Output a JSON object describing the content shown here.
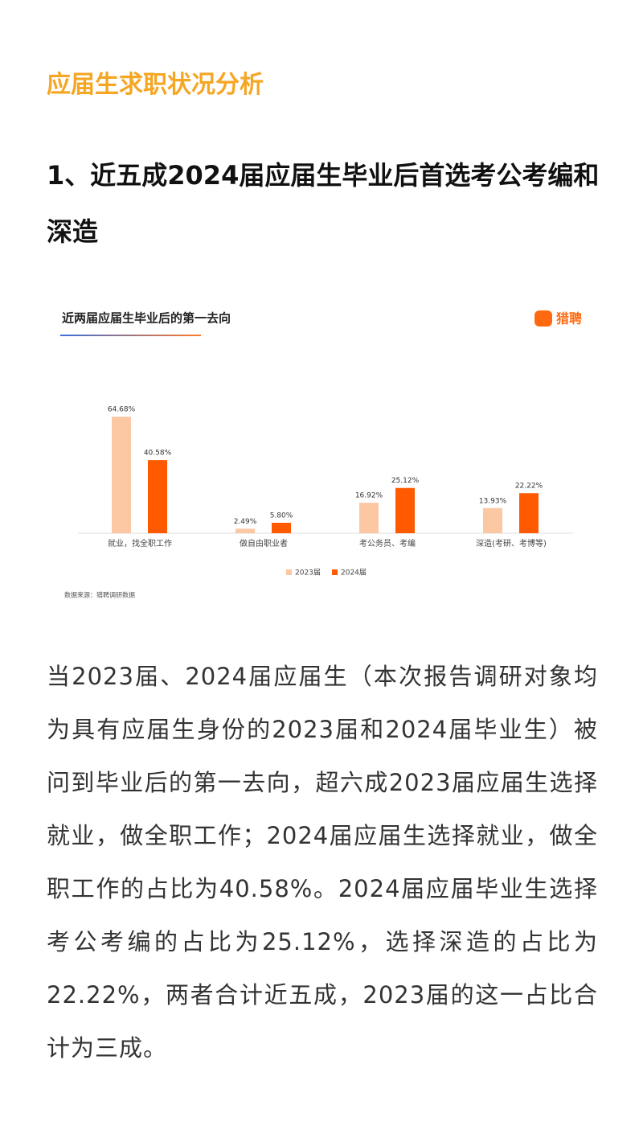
{
  "header": {
    "title": "应届生求职状况分析"
  },
  "section": {
    "heading": "1、近五成2024届应届生毕业后首选考公考编和深造"
  },
  "chart_data": {
    "type": "bar",
    "title": "近两届应届生毕业后的第一去向",
    "logo": "猎聘",
    "categories": [
      "就业，找全职工作",
      "做自由职业者",
      "考公务员、考编",
      "深造(考研、考博等)"
    ],
    "series": [
      {
        "name": "2023届",
        "color": "#fcc8a4",
        "values": [
          64.68,
          2.49,
          16.92,
          13.93
        ],
        "value_labels": [
          "64.68%",
          "2.49%",
          "16.92%",
          "13.93%"
        ]
      },
      {
        "name": "2024届",
        "color": "#ff5a00",
        "values": [
          40.58,
          5.8,
          25.12,
          22.22
        ],
        "value_labels": [
          "40.58%",
          "5.80%",
          "25.12%",
          "22.22%"
        ]
      }
    ],
    "source": "数据来源：猎聘调研数据"
  },
  "paragraph": "当2023届、2024届应届生（本次报告调研对象均为具有应届生身份的2023届和2024届毕业生）被问到毕业后的第一去向，超六成2023届应届生选择就业，做全职工作；2024届应届生选择就业，做全职工作的占比为40.58%。2024届应届毕业生选择考公考编的占比为25.12%，选择深造的占比为22.22%，两者合计近五成，2023届的这一占比合计为三成。"
}
